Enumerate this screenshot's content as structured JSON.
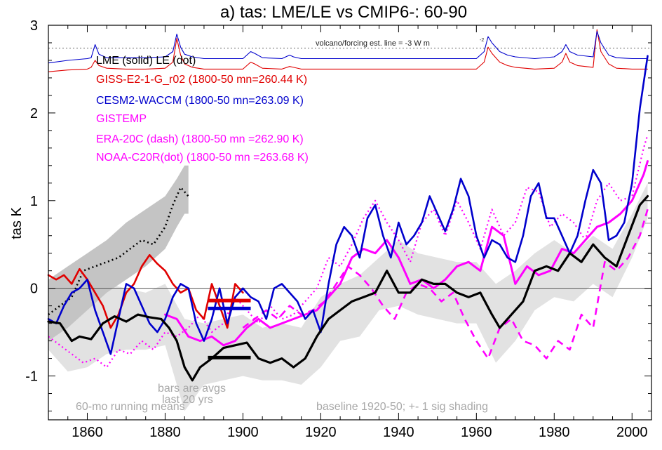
{
  "chart_data": {
    "type": "line",
    "title": "a) tas: LME/LE vs CMIP6-: 60-90",
    "xlabel": "",
    "ylabel": "tas K",
    "xlim": [
      1850,
      2005
    ],
    "ylim": [
      -1.5,
      3.0
    ],
    "x_ticks": [
      1860,
      1880,
      1900,
      1920,
      1940,
      1960,
      1980,
      2000
    ],
    "y_ticks": [
      -1,
      0,
      1,
      2,
      3
    ],
    "y_tick_labels": [
      "-1",
      "0",
      "1",
      "2",
      "3"
    ],
    "reference_lines": {
      "zero": 0,
      "forcing_line": 2.74
    },
    "legend": [
      {
        "text": "LME (solid)   LE (dot)",
        "color": "#000000"
      },
      {
        "text": "GISS-E2-1-G_r02 (1800-50 mn=260.44 K)",
        "color": "#e00000"
      },
      {
        "text": "CESM2-WACCM (1800-50 mn=263.09 K)",
        "color": "#0000cc"
      },
      {
        "text": "GISTEMP",
        "color": "#ff00ff"
      },
      {
        "text": "ERA-20C (dash) (1800-50 mn =262.90 K)",
        "color": "#ff00ff"
      },
      {
        "text": "NOAA-C20R(dot) (1800-50 mn =263.68 K)",
        "color": "#ff00ff"
      }
    ],
    "legend_position": "top-left",
    "annotations": {
      "volcano": "volcano/forcing est.      line = -3 W m",
      "volcano_sup": "-2",
      "bars_note_1": "bars are avgs",
      "bars_note_2": "last 20 yrs",
      "running_means": "60-mo running means",
      "baseline": "baseline 1920-50; +- 1 sig shading"
    },
    "colors": {
      "giss": "#e00000",
      "cesm": "#0000cc",
      "obs": "#ff00ff",
      "lme": "#000000",
      "shade_light": "#e2e2e2",
      "shade_dark": "#c4c4c4"
    },
    "series": {
      "forcing_blue": {
        "x": [
          1850,
          1855,
          1860,
          1861,
          1862,
          1863,
          1865,
          1870,
          1875,
          1880,
          1882,
          1883,
          1884,
          1885,
          1887,
          1890,
          1895,
          1900,
          1902,
          1903,
          1905,
          1910,
          1912,
          1913,
          1915,
          1920,
          1925,
          1930,
          1935,
          1940,
          1945,
          1950,
          1955,
          1960,
          1962,
          1963,
          1964,
          1966,
          1968,
          1970,
          1975,
          1980,
          1982,
          1983,
          1984,
          1986,
          1990,
          1991,
          1992,
          1994,
          1996,
          2000,
          2004
        ],
        "y": [
          2.57,
          2.6,
          2.62,
          2.63,
          2.78,
          2.67,
          2.63,
          2.63,
          2.63,
          2.64,
          2.7,
          2.9,
          2.75,
          2.67,
          2.64,
          2.62,
          2.62,
          2.62,
          2.7,
          2.68,
          2.63,
          2.62,
          2.66,
          2.64,
          2.62,
          2.62,
          2.62,
          2.62,
          2.62,
          2.62,
          2.62,
          2.62,
          2.62,
          2.62,
          2.7,
          2.87,
          2.8,
          2.7,
          2.66,
          2.64,
          2.62,
          2.64,
          2.7,
          2.78,
          2.7,
          2.66,
          2.64,
          2.93,
          2.8,
          2.66,
          2.63,
          2.62,
          2.62
        ]
      },
      "forcing_red": {
        "x": [
          1850,
          1855,
          1860,
          1861,
          1862,
          1863,
          1865,
          1870,
          1875,
          1880,
          1882,
          1883,
          1884,
          1885,
          1887,
          1890,
          1895,
          1900,
          1902,
          1903,
          1905,
          1910,
          1912,
          1913,
          1915,
          1920,
          1925,
          1930,
          1935,
          1940,
          1945,
          1950,
          1955,
          1960,
          1962,
          1963,
          1964,
          1966,
          1968,
          1970,
          1975,
          1980,
          1982,
          1983,
          1984,
          1986,
          1990,
          1991,
          1992,
          1994,
          1996,
          2000,
          2004
        ],
        "y": [
          2.47,
          2.49,
          2.5,
          2.52,
          2.6,
          2.54,
          2.51,
          2.5,
          2.5,
          2.51,
          2.58,
          2.85,
          2.66,
          2.56,
          2.52,
          2.5,
          2.5,
          2.5,
          2.58,
          2.56,
          2.51,
          2.5,
          2.53,
          2.52,
          2.5,
          2.5,
          2.5,
          2.5,
          2.5,
          2.5,
          2.5,
          2.5,
          2.5,
          2.5,
          2.58,
          2.75,
          2.68,
          2.58,
          2.54,
          2.52,
          2.5,
          2.51,
          2.58,
          2.68,
          2.58,
          2.54,
          2.52,
          2.95,
          2.7,
          2.56,
          2.51,
          2.5,
          2.5
        ]
      },
      "lme_band_light": {
        "x": [
          1850,
          1855,
          1860,
          1865,
          1870,
          1875,
          1880,
          1885,
          1890,
          1895,
          1900,
          1905,
          1910,
          1915,
          1920,
          1925,
          1930,
          1935,
          1940,
          1945,
          1950,
          1955,
          1960,
          1965,
          1970,
          1975,
          1980,
          1985,
          1990,
          1995,
          2000,
          2004
        ],
        "upper": [
          -0.05,
          -0.15,
          -0.1,
          0.05,
          0.0,
          -0.05,
          0.05,
          -0.35,
          -0.4,
          -0.35,
          -0.3,
          -0.45,
          -0.4,
          -0.45,
          -0.1,
          0.05,
          0.15,
          0.35,
          0.55,
          0.4,
          0.35,
          0.3,
          0.3,
          0.05,
          0.2,
          0.4,
          0.55,
          0.4,
          0.6,
          0.45,
          0.85,
          1.2
        ],
        "lower": [
          -0.7,
          -0.95,
          -0.9,
          -0.75,
          -0.7,
          -0.7,
          -0.65,
          -1.4,
          -1.1,
          -1.05,
          -1.0,
          -1.05,
          -1.05,
          -1.1,
          -0.9,
          -0.6,
          -0.55,
          -0.25,
          -0.2,
          -0.3,
          -0.35,
          -0.4,
          -0.4,
          -0.85,
          -0.6,
          -0.25,
          -0.1,
          -0.15,
          0.05,
          -0.1,
          0.35,
          0.8
        ]
      },
      "le_band_dark": {
        "x": [
          1850,
          1855,
          1860,
          1865,
          1870,
          1875,
          1880,
          1883,
          1885,
          1886
        ],
        "upper": [
          0.1,
          0.25,
          0.4,
          0.55,
          0.75,
          0.9,
          1.05,
          1.25,
          1.4,
          1.4
        ],
        "lower": [
          -0.6,
          -0.45,
          -0.25,
          -0.05,
          0.1,
          0.25,
          0.45,
          0.7,
          0.85,
          0.85
        ]
      },
      "le_dot": {
        "x": [
          1850,
          1853,
          1856,
          1859,
          1862,
          1865,
          1868,
          1871,
          1874,
          1877,
          1880,
          1882,
          1884,
          1886
        ],
        "y": [
          -0.3,
          -0.2,
          -0.1,
          0.2,
          0.25,
          0.3,
          0.35,
          0.45,
          0.55,
          0.5,
          0.7,
          0.95,
          1.15,
          1.05
        ]
      },
      "lme": {
        "x": [
          1850,
          1853,
          1856,
          1858,
          1861,
          1864,
          1867,
          1870,
          1873,
          1876,
          1879,
          1881,
          1883,
          1885,
          1887,
          1889,
          1892,
          1895,
          1898,
          1901,
          1904,
          1907,
          1910,
          1913,
          1916,
          1919,
          1922,
          1925,
          1928,
          1931,
          1934,
          1937,
          1940,
          1943,
          1946,
          1949,
          1952,
          1955,
          1958,
          1961,
          1964,
          1966,
          1969,
          1972,
          1975,
          1978,
          1981,
          1984,
          1987,
          1990,
          1993,
          1996,
          1999,
          2002,
          2004
        ],
        "y": [
          -0.38,
          -0.4,
          -0.6,
          -0.55,
          -0.58,
          -0.4,
          -0.32,
          -0.38,
          -0.3,
          -0.33,
          -0.35,
          -0.45,
          -0.6,
          -0.9,
          -1.05,
          -0.9,
          -0.8,
          -0.68,
          -0.65,
          -0.62,
          -0.8,
          -0.85,
          -0.8,
          -0.9,
          -0.8,
          -0.55,
          -0.35,
          -0.25,
          -0.15,
          -0.1,
          -0.05,
          0.2,
          -0.05,
          -0.05,
          0.1,
          0.05,
          0.05,
          -0.05,
          -0.1,
          -0.05,
          -0.3,
          -0.45,
          -0.3,
          -0.15,
          0.2,
          0.25,
          0.2,
          0.4,
          0.3,
          0.5,
          0.35,
          0.25,
          0.6,
          0.95,
          1.05
        ]
      },
      "giss": {
        "x": [
          1850,
          1852,
          1854,
          1856,
          1858,
          1860,
          1862,
          1864,
          1866,
          1868,
          1870,
          1872,
          1874,
          1876,
          1878,
          1880,
          1882,
          1884,
          1886,
          1888,
          1890,
          1892,
          1894,
          1896,
          1898,
          1900
        ],
        "y": [
          0.15,
          0.1,
          0.15,
          0.05,
          0.22,
          0.1,
          -0.05,
          -0.2,
          -0.45,
          -0.3,
          -0.05,
          0.05,
          0.25,
          0.38,
          0.28,
          0.2,
          0.05,
          -0.05,
          0.0,
          -0.25,
          -0.35,
          0.05,
          -0.2,
          -0.45,
          0.05,
          -0.05
        ]
      },
      "cesm": {
        "x": [
          1850,
          1852,
          1854,
          1856,
          1858,
          1860,
          1862,
          1864,
          1866,
          1868,
          1870,
          1872,
          1874,
          1876,
          1878,
          1880,
          1882,
          1884,
          1886,
          1888,
          1890,
          1892,
          1894,
          1896,
          1898,
          1900,
          1902,
          1904,
          1906,
          1908,
          1910,
          1912,
          1914,
          1916,
          1918,
          1920,
          1922,
          1924,
          1926,
          1928,
          1930,
          1932,
          1934,
          1936,
          1938,
          1940,
          1942,
          1944,
          1946,
          1948,
          1950,
          1952,
          1954,
          1956,
          1958,
          1960,
          1962,
          1964,
          1966,
          1968,
          1970,
          1972,
          1974,
          1976,
          1978,
          1980,
          1982,
          1984,
          1986,
          1988,
          1990,
          1992,
          1994,
          1996,
          1998,
          2000,
          2002,
          2004
        ],
        "y": [
          -0.35,
          -0.4,
          -0.2,
          -0.05,
          0.0,
          0.1,
          -0.25,
          -0.5,
          -0.75,
          -0.35,
          0.05,
          0.0,
          -0.2,
          -0.4,
          -0.5,
          -0.35,
          -0.1,
          0.05,
          0.0,
          -0.4,
          -0.6,
          -0.35,
          0.0,
          -0.4,
          -0.1,
          0.0,
          -0.1,
          -0.15,
          -0.35,
          0.0,
          0.05,
          -0.05,
          -0.15,
          -0.35,
          -0.25,
          -0.5,
          0.05,
          0.5,
          0.7,
          0.6,
          0.35,
          0.8,
          0.95,
          0.6,
          0.35,
          0.75,
          0.5,
          0.6,
          0.75,
          1.05,
          0.85,
          0.65,
          0.9,
          1.25,
          1.05,
          0.6,
          0.35,
          0.55,
          0.5,
          0.35,
          0.3,
          0.6,
          1.05,
          1.2,
          0.8,
          0.8,
          0.6,
          0.4,
          0.6,
          1.0,
          1.35,
          1.2,
          0.55,
          0.6,
          0.75,
          1.2,
          2.05,
          2.65
        ]
      },
      "gistemp": {
        "x": [
          1880,
          1883,
          1886,
          1889,
          1892,
          1895,
          1898,
          1901,
          1904,
          1907,
          1910,
          1913,
          1916,
          1919,
          1922,
          1925,
          1928,
          1931,
          1934,
          1937,
          1940,
          1943,
          1946,
          1949,
          1952,
          1955,
          1958,
          1961,
          1964,
          1967,
          1970,
          1973,
          1976,
          1979,
          1982,
          1985,
          1988,
          1991,
          1994,
          1997,
          2000,
          2003,
          2004
        ],
        "y": [
          -0.3,
          -0.35,
          -0.55,
          -0.6,
          -0.55,
          -0.65,
          -0.6,
          -0.45,
          -0.35,
          -0.45,
          -0.4,
          -0.35,
          -0.3,
          -0.25,
          -0.1,
          0.05,
          0.35,
          0.45,
          0.4,
          0.55,
          0.35,
          0.05,
          0.1,
          0.0,
          0.1,
          0.25,
          0.3,
          0.2,
          0.7,
          0.6,
          0.05,
          0.25,
          0.15,
          0.2,
          0.45,
          0.4,
          0.55,
          0.7,
          0.75,
          0.85,
          1.0,
          1.3,
          1.45
        ]
      },
      "era20c": {
        "x": [
          1900,
          1903,
          1906,
          1909,
          1912,
          1915,
          1918,
          1921,
          1924,
          1927,
          1930,
          1933,
          1936,
          1939,
          1942,
          1945,
          1948,
          1951,
          1954,
          1957,
          1960,
          1963,
          1966,
          1969,
          1972,
          1975,
          1978,
          1981,
          1984,
          1987,
          1990,
          1993,
          1996,
          1999,
          2002,
          2004
        ],
        "y": [
          -0.45,
          -0.35,
          -0.25,
          -0.35,
          -0.2,
          -0.3,
          -0.25,
          -0.15,
          0.05,
          0.25,
          0.15,
          0.0,
          -0.2,
          -0.35,
          -0.05,
          0.05,
          0.0,
          -0.15,
          -0.05,
          -0.35,
          -0.6,
          -0.8,
          -0.45,
          -0.35,
          -0.6,
          -0.65,
          -0.8,
          -0.6,
          -0.7,
          -0.3,
          -0.45,
          0.3,
          0.2,
          0.35,
          0.6,
          0.9
        ]
      },
      "noaa20cr": {
        "x": [
          1850,
          1853,
          1856,
          1859,
          1862,
          1865,
          1868,
          1871,
          1874,
          1877,
          1880,
          1883,
          1886,
          1889,
          1892,
          1895,
          1898,
          1901,
          1904,
          1907,
          1910,
          1913,
          1916,
          1919,
          1922,
          1925,
          1928,
          1931,
          1934,
          1937,
          1940,
          1943,
          1946,
          1949,
          1952,
          1955,
          1958,
          1961,
          1964,
          1967,
          1970,
          1973,
          1976,
          1979,
          1982,
          1985,
          1988,
          1991,
          1994,
          1997,
          2000,
          2003,
          2004
        ],
        "y": [
          -0.55,
          -0.65,
          -0.75,
          -0.85,
          -0.8,
          -0.9,
          -0.7,
          -0.75,
          -0.6,
          -0.7,
          -0.5,
          -0.55,
          -0.45,
          -0.3,
          -0.5,
          -0.4,
          -0.1,
          -0.25,
          -0.4,
          -0.2,
          -0.35,
          -0.3,
          -0.15,
          0.0,
          0.35,
          0.25,
          0.5,
          0.8,
          1.0,
          0.75,
          0.55,
          0.3,
          0.75,
          0.9,
          0.6,
          1.0,
          0.75,
          0.45,
          0.9,
          0.6,
          0.75,
          1.15,
          1.1,
          0.7,
          0.85,
          0.75,
          0.55,
          1.0,
          1.2,
          1.0,
          1.05,
          1.6,
          1.75
        ]
      }
    },
    "bars": [
      {
        "name": "giss-bar",
        "x0": 1891,
        "x1": 1902,
        "y": -0.14,
        "color": "#e00000"
      },
      {
        "name": "cesm-bar",
        "x0": 1891,
        "x1": 1902,
        "y": -0.23,
        "color": "#0000cc"
      },
      {
        "name": "lme-bar",
        "x0": 1891,
        "x1": 1902,
        "y": -0.79,
        "color": "#000000"
      }
    ]
  }
}
